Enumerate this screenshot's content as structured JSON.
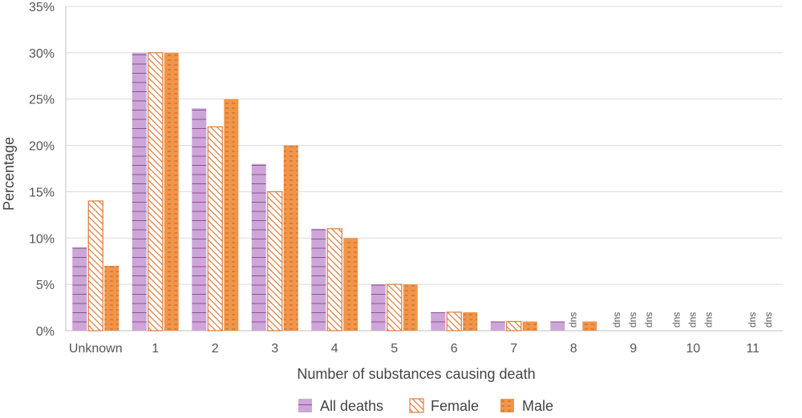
{
  "chart_data": {
    "type": "bar",
    "title": "",
    "xlabel": "Number of substances causing death",
    "ylabel": "Percentage",
    "ylim": [
      0,
      35
    ],
    "yticks": [
      "0%",
      "5%",
      "10%",
      "15%",
      "20%",
      "25%",
      "30%",
      "35%"
    ],
    "categories": [
      "Unknown",
      "1",
      "2",
      "3",
      "4",
      "5",
      "6",
      "7",
      "8",
      "9",
      "10",
      "11"
    ],
    "suppressed_label": "sup",
    "series": [
      {
        "name": "All deaths",
        "color": "#c9a4d4",
        "values": [
          9,
          30,
          24,
          18,
          11,
          5,
          2,
          1,
          1,
          null,
          null,
          null
        ]
      },
      {
        "name": "Female",
        "color": "#e07b39",
        "values": [
          14,
          30,
          22,
          15,
          11,
          5,
          2,
          1,
          null,
          null,
          null,
          null
        ]
      },
      {
        "name": "Male",
        "color": "#f0954a",
        "values": [
          7,
          30,
          25,
          20,
          10,
          5,
          2,
          1,
          1,
          null,
          null,
          null
        ]
      }
    ],
    "suppressed": [
      {
        "category": "8",
        "series": "Female"
      },
      {
        "category": "9",
        "series": "All deaths"
      },
      {
        "category": "9",
        "series": "Female"
      },
      {
        "category": "9",
        "series": "Male"
      },
      {
        "category": "10",
        "series": "All deaths"
      },
      {
        "category": "10",
        "series": "Female"
      },
      {
        "category": "10",
        "series": "Male"
      },
      {
        "category": "11",
        "series": "Female"
      },
      {
        "category": "11",
        "series": "Male"
      }
    ],
    "legend_position": "bottom"
  }
}
